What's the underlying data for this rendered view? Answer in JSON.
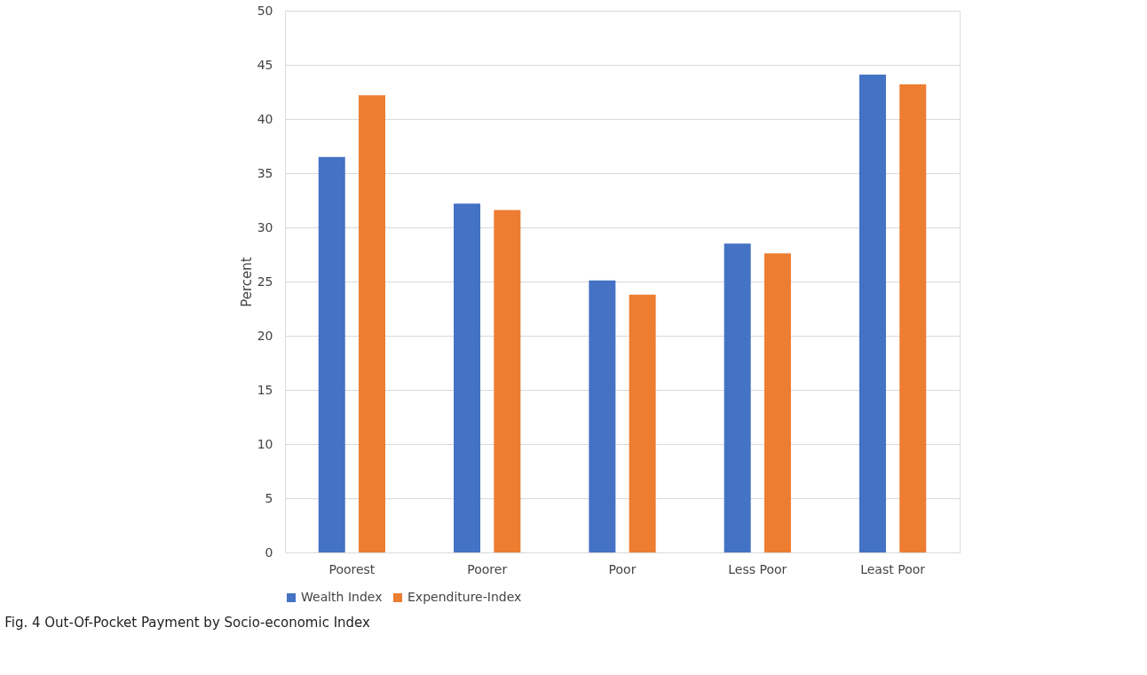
{
  "chart_data": {
    "type": "bar",
    "ylabel": "Percent",
    "categories": [
      "Poorest",
      "Poorer",
      "Poor",
      "Less Poor",
      "Least Poor"
    ],
    "series": [
      {
        "name": "Wealth Index",
        "color": "#4472c4",
        "values": [
          36.5,
          32.2,
          25.1,
          28.5,
          44.1
        ]
      },
      {
        "name": "Expenditure-Index",
        "color": "#ed7d31",
        "values": [
          42.2,
          31.6,
          23.8,
          27.6,
          43.2
        ]
      }
    ],
    "ylim": [
      0,
      50
    ],
    "yticks": [
      0,
      5,
      10,
      15,
      20,
      25,
      30,
      35,
      40,
      45,
      50
    ],
    "grid": "y",
    "legend": "bottom",
    "annotations": [
      "Fig. 4 Out-Of-Pocket Payment by Socio-economic Index"
    ]
  }
}
